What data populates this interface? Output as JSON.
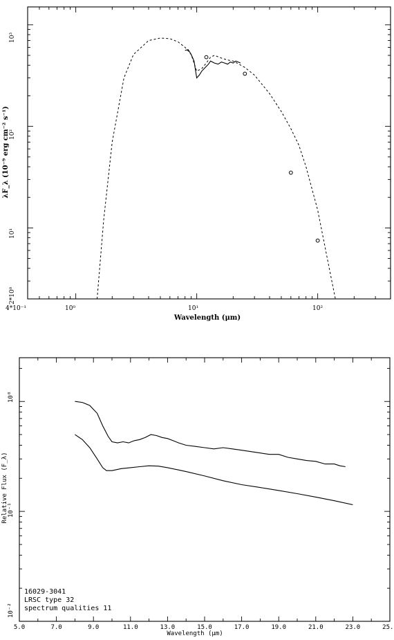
{
  "chart_data": [
    {
      "type": "line",
      "xscale": "log",
      "yscale": "log",
      "xlabel": "Wavelength (μm)",
      "ylabel": "λF_λ (10⁻⁹ erg cm⁻² s⁻¹)",
      "xlim": [
        0.4,
        400
      ],
      "ylim": [
        2,
        1500
      ],
      "x_tick_labels": [
        "4*10⁻¹",
        "10⁰",
        "10¹",
        "10²"
      ],
      "y_tick_labels": [
        "2*10⁰",
        "10¹",
        "10²",
        "10³"
      ],
      "series": [
        {
          "style": "dashed",
          "x": [
            1.5,
            1.7,
            2,
            2.5,
            3,
            4,
            5,
            6,
            7,
            8,
            9,
            10,
            11,
            12,
            13,
            14,
            16,
            18,
            20,
            25,
            30,
            40,
            50,
            60,
            70,
            80,
            100,
            120,
            140
          ],
          "y": [
            2,
            12,
            70,
            300,
            510,
            700,
            740,
            730,
            680,
            600,
            510,
            350,
            370,
            420,
            480,
            500,
            470,
            450,
            440,
            380,
            320,
            210,
            140,
            95,
            65,
            40,
            15,
            5,
            2
          ]
        },
        {
          "style": "solid",
          "x": [
            8,
            8.5,
            9,
            9.5,
            10,
            10.5,
            11,
            11.5,
            12,
            12.5,
            13,
            14,
            15,
            16,
            17,
            18,
            19,
            20,
            21,
            22,
            23
          ],
          "y": [
            560,
            570,
            510,
            440,
            300,
            320,
            350,
            370,
            390,
            410,
            440,
            420,
            410,
            430,
            420,
            410,
            430,
            420,
            440,
            430,
            420
          ]
        },
        {
          "style": "points",
          "x": [
            12,
            25,
            60,
            100
          ],
          "y": [
            480,
            330,
            35,
            7.5
          ]
        }
      ]
    },
    {
      "type": "line",
      "yscale": "log",
      "xlabel": "Wavelength (μm)",
      "ylabel": "Relative Flux (F_λ)",
      "xlim": [
        5,
        25
      ],
      "ylim": [
        0.01,
        2.5
      ],
      "x_ticks": [
        5,
        7,
        9,
        11,
        13,
        15,
        17,
        19,
        21,
        23,
        25
      ],
      "x_tick_labels": [
        "5.0",
        "7.0",
        "9.0",
        "11.0",
        "13.0",
        "15.0",
        "17.0",
        "19.0",
        "21.0",
        "23.0",
        "25.0"
      ],
      "y_tick_labels": [
        "10⁻²",
        "10⁻¹",
        "10⁰"
      ],
      "annotation": [
        "16029-3041",
        "LRSC type 32",
        "spectrum qualities 11"
      ],
      "series": [
        {
          "x": [
            8.0,
            8.4,
            8.8,
            9.2,
            9.5,
            9.8,
            10.0,
            10.3,
            10.6,
            10.9,
            11.2,
            11.5,
            11.8,
            12.1,
            12.4,
            12.7,
            13.0,
            13.3,
            13.6,
            14.0,
            14.5,
            15.0,
            15.5,
            16.0,
            16.5,
            17.0,
            17.5,
            18.0,
            18.5,
            19.0,
            19.5,
            20.0,
            20.5,
            21.0,
            21.5,
            22.0,
            22.3,
            22.6
          ],
          "y": [
            1.0,
            0.98,
            0.92,
            0.78,
            0.6,
            0.48,
            0.43,
            0.42,
            0.43,
            0.42,
            0.44,
            0.45,
            0.47,
            0.5,
            0.49,
            0.47,
            0.46,
            0.44,
            0.42,
            0.4,
            0.39,
            0.38,
            0.37,
            0.38,
            0.37,
            0.36,
            0.35,
            0.34,
            0.33,
            0.33,
            0.31,
            0.3,
            0.29,
            0.285,
            0.27,
            0.27,
            0.26,
            0.255
          ]
        },
        {
          "x": [
            8.0,
            8.4,
            8.8,
            9.2,
            9.5,
            9.7,
            10.0,
            10.5,
            11.0,
            11.5,
            12.0,
            12.5,
            13.0,
            13.5,
            14.0,
            15.0,
            16.0,
            17.0,
            18.0,
            19.0,
            20.0,
            21.0,
            22.0,
            23.0
          ],
          "y": [
            0.5,
            0.45,
            0.38,
            0.3,
            0.25,
            0.235,
            0.235,
            0.245,
            0.25,
            0.255,
            0.26,
            0.258,
            0.25,
            0.24,
            0.23,
            0.21,
            0.19,
            0.175,
            0.165,
            0.155,
            0.145,
            0.135,
            0.125,
            0.115
          ]
        }
      ]
    }
  ]
}
